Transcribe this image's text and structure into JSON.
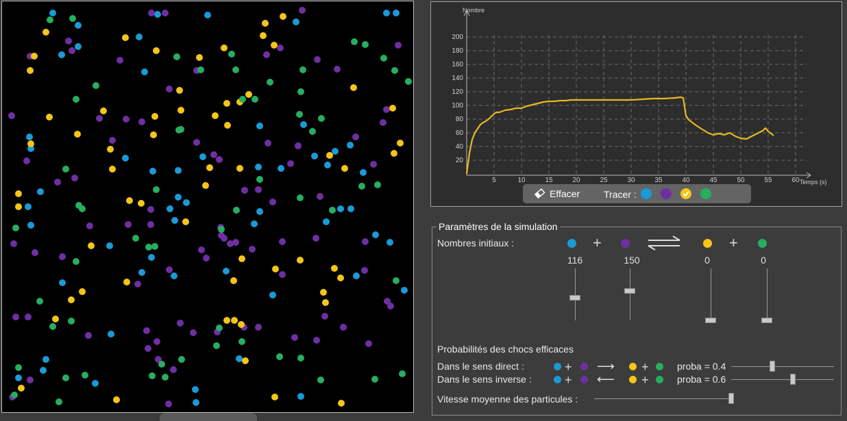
{
  "colors": {
    "blue": "#1a9ad6",
    "purple": "#6f2fa3",
    "yellow": "#f5c518",
    "green": "#27ae60",
    "curve": "#e8b923"
  },
  "chart_data": {
    "type": "line",
    "xlabel": "Temps (s)",
    "ylabel": "Nombre",
    "xlim": [
      0,
      62
    ],
    "ylim": [
      0,
      210
    ],
    "xticks": [
      5,
      10,
      15,
      20,
      25,
      30,
      35,
      40,
      45,
      50,
      55,
      60
    ],
    "yticks": [
      20,
      40,
      60,
      80,
      100,
      120,
      140,
      160,
      180,
      200
    ],
    "grid": true,
    "series": [
      {
        "color": "yellow",
        "x": [
          0,
          0.5,
          1,
          1.5,
          2,
          2.5,
          3,
          3.5,
          4,
          4.5,
          5,
          5.5,
          6,
          7,
          8,
          9,
          10,
          11,
          12,
          13,
          14,
          15,
          16,
          17,
          18,
          19,
          20,
          22,
          24,
          26,
          28,
          30,
          32,
          34,
          36,
          38,
          39,
          39.5,
          40,
          40.5,
          41,
          42,
          43,
          44,
          45,
          46,
          47,
          48,
          49,
          50,
          51,
          52,
          53,
          54,
          54.5,
          55,
          56
        ],
        "y": [
          0,
          30,
          50,
          60,
          66,
          72,
          75,
          77,
          80,
          84,
          88,
          90,
          90,
          93,
          94,
          96,
          96,
          99,
          101,
          103,
          105,
          106,
          106,
          107,
          107,
          108,
          108,
          108,
          108,
          108,
          108,
          108,
          109,
          110,
          110,
          111,
          112,
          111,
          85,
          79,
          76,
          70,
          65,
          60,
          57,
          59,
          57,
          60,
          55,
          52,
          51,
          55,
          59,
          63,
          67,
          62,
          56
        ]
      }
    ]
  },
  "graph": {
    "clear_label": "Effacer",
    "tracer_label": "Tracer :",
    "tracer_dots": [
      "blue",
      "purple",
      "yellow",
      "green"
    ]
  },
  "params": {
    "title": "Paramètres de la simulation",
    "initial_label": "Nombres initiaux :",
    "initial_counts": {
      "blue": "116",
      "purple": "150",
      "yellow": "0",
      "green": "0"
    },
    "initial_levels": {
      "blue": 116,
      "purple": 150,
      "yellow": 0,
      "green": 0
    },
    "initial_max": 250,
    "prob_title": "Probabilités des chocs efficaces",
    "direct_label": "Dans le sens direct :",
    "inverse_label": "Dans le sens inverse :",
    "direct_proba": "proba = 0.4",
    "inverse_proba": "proba = 0.6",
    "direct_value": 0.4,
    "inverse_value": 0.6,
    "speed_label": "Vitesse moyenne des particules :",
    "speed_value": 1.0
  },
  "particles": {
    "blue": [
      [
        74,
        17
      ],
      [
        111,
        35
      ],
      [
        111,
        66
      ],
      [
        87,
        78
      ],
      [
        200,
        52
      ],
      [
        227,
        19
      ],
      [
        300,
        20
      ],
      [
        429,
        30
      ],
      [
        561,
        17
      ],
      [
        575,
        17
      ],
      [
        208,
        103
      ],
      [
        376,
        182
      ],
      [
        440,
        180
      ],
      [
        40,
        198
      ],
      [
        42,
        215
      ],
      [
        180,
        229
      ],
      [
        220,
        248
      ],
      [
        257,
        247
      ],
      [
        269,
        294
      ],
      [
        257,
        286
      ],
      [
        252,
        320
      ],
      [
        293,
        227
      ],
      [
        374,
        242
      ],
      [
        407,
        244
      ],
      [
        456,
        226
      ],
      [
        486,
        219
      ],
      [
        475,
        239
      ],
      [
        508,
        210
      ],
      [
        527,
        250
      ],
      [
        494,
        303
      ],
      [
        509,
        303
      ],
      [
        473,
        322
      ],
      [
        545,
        341
      ],
      [
        566,
        352
      ],
      [
        38,
        300
      ],
      [
        42,
        327
      ],
      [
        88,
        411
      ],
      [
        159,
        486
      ],
      [
        251,
        401
      ],
      [
        376,
        307
      ],
      [
        368,
        325
      ],
      [
        327,
        394
      ],
      [
        395,
        429
      ],
      [
        517,
        401
      ],
      [
        587,
        422
      ],
      [
        64,
        523
      ],
      [
        24,
        550
      ],
      [
        136,
        558
      ],
      [
        282,
        567
      ],
      [
        346,
        522
      ],
      [
        436,
        577
      ],
      [
        283,
        586
      ],
      [
        204,
        396
      ],
      [
        218,
        374
      ],
      [
        245,
        303
      ],
      [
        56,
        278
      ],
      [
        157,
        357
      ],
      [
        60,
        539
      ]
    ],
    "purple": [
      [
        41,
        80
      ],
      [
        97,
        58
      ],
      [
        102,
        72
      ],
      [
        172,
        86
      ],
      [
        218,
        17
      ],
      [
        238,
        17
      ],
      [
        181,
        172
      ],
      [
        204,
        176
      ],
      [
        284,
        101
      ],
      [
        244,
        128
      ],
      [
        284,
        206
      ],
      [
        309,
        224
      ],
      [
        354,
        276
      ],
      [
        386,
        78
      ],
      [
        406,
        68
      ],
      [
        438,
        13
      ],
      [
        460,
        85
      ],
      [
        489,
        99
      ],
      [
        516,
        198
      ],
      [
        542,
        238
      ],
      [
        561,
        158
      ],
      [
        556,
        177
      ],
      [
        578,
        64
      ],
      [
        14,
        167
      ],
      [
        36,
        233
      ],
      [
        81,
        264
      ],
      [
        106,
        258
      ],
      [
        161,
        203
      ],
      [
        317,
        231
      ],
      [
        388,
        207
      ],
      [
        432,
        211
      ],
      [
        421,
        237
      ],
      [
        464,
        285
      ],
      [
        395,
        293
      ],
      [
        333,
        354
      ],
      [
        320,
        342
      ],
      [
        324,
        346
      ],
      [
        298,
        375
      ],
      [
        374,
        275
      ],
      [
        409,
        351
      ],
      [
        458,
        346
      ],
      [
        530,
        351
      ],
      [
        529,
        393
      ],
      [
        17,
        354
      ],
      [
        48,
        367
      ],
      [
        88,
        373
      ],
      [
        128,
        328
      ],
      [
        184,
        326
      ],
      [
        217,
        326
      ],
      [
        217,
        304
      ],
      [
        291,
        363
      ],
      [
        260,
        470
      ],
      [
        279,
        484
      ],
      [
        211,
        481
      ],
      [
        226,
        497
      ],
      [
        213,
        507
      ],
      [
        314,
        483
      ],
      [
        353,
        476
      ],
      [
        374,
        476
      ],
      [
        409,
        399
      ],
      [
        471,
        460
      ],
      [
        459,
        495
      ],
      [
        427,
        491
      ],
      [
        498,
        476
      ],
      [
        562,
        438
      ],
      [
        567,
        445
      ],
      [
        535,
        500
      ],
      [
        20,
        461
      ],
      [
        38,
        461
      ],
      [
        126,
        488
      ],
      [
        198,
        413
      ],
      [
        228,
        523
      ],
      [
        250,
        538
      ],
      [
        243,
        588
      ],
      [
        41,
        553
      ],
      [
        15,
        578
      ],
      [
        365,
        362
      ],
      [
        244,
        392
      ],
      [
        319,
        330
      ],
      [
        341,
        352
      ],
      [
        142,
        171
      ]
    ],
    "yellow": [
      [
        64,
        45
      ],
      [
        47,
        80
      ],
      [
        41,
        101
      ],
      [
        180,
        53
      ],
      [
        225,
        72
      ],
      [
        288,
        82
      ],
      [
        259,
        130
      ],
      [
        223,
        168
      ],
      [
        261,
        159
      ],
      [
        221,
        195
      ],
      [
        324,
        68
      ],
      [
        360,
        136
      ],
      [
        347,
        147
      ],
      [
        328,
        149
      ],
      [
        311,
        167
      ],
      [
        329,
        181
      ],
      [
        384,
        32
      ],
      [
        381,
        50
      ],
      [
        410,
        22
      ],
      [
        397,
        64
      ],
      [
        513,
        126
      ],
      [
        570,
        156
      ],
      [
        581,
        207
      ],
      [
        572,
        222
      ],
      [
        478,
        225
      ],
      [
        500,
        244
      ],
      [
        42,
        208
      ],
      [
        69,
        169
      ],
      [
        110,
        194
      ],
      [
        158,
        216
      ],
      [
        161,
        245
      ],
      [
        148,
        160
      ],
      [
        24,
        281
      ],
      [
        24,
        300
      ],
      [
        297,
        269
      ],
      [
        303,
        243
      ],
      [
        347,
        244
      ],
      [
        186,
        291
      ],
      [
        203,
        295
      ],
      [
        268,
        322
      ],
      [
        130,
        357
      ],
      [
        182,
        410
      ],
      [
        338,
        408
      ],
      [
        350,
        376
      ],
      [
        399,
        391
      ],
      [
        435,
        378
      ],
      [
        485,
        390
      ],
      [
        494,
        404
      ],
      [
        469,
        425
      ],
      [
        472,
        440
      ],
      [
        117,
        424
      ],
      [
        101,
        436
      ],
      [
        78,
        464
      ],
      [
        328,
        466
      ],
      [
        339,
        466
      ],
      [
        349,
        472
      ],
      [
        355,
        525
      ],
      [
        28,
        565
      ],
      [
        167,
        582
      ],
      [
        398,
        578
      ],
      [
        495,
        587
      ]
    ],
    "green": [
      [
        70,
        27
      ],
      [
        103,
        25
      ],
      [
        137,
        123
      ],
      [
        108,
        143
      ],
      [
        255,
        81
      ],
      [
        290,
        100
      ],
      [
        261,
        187
      ],
      [
        258,
        188
      ],
      [
        335,
        77
      ],
      [
        341,
        100
      ],
      [
        369,
        143
      ],
      [
        351,
        143
      ],
      [
        391,
        118
      ],
      [
        436,
        132
      ],
      [
        434,
        165
      ],
      [
        466,
        171
      ],
      [
        453,
        190
      ],
      [
        439,
        100
      ],
      [
        514,
        59
      ],
      [
        530,
        63
      ],
      [
        557,
        83
      ],
      [
        573,
        101
      ],
      [
        593,
        117
      ],
      [
        93,
        245
      ],
      [
        112,
        298
      ],
      [
        225,
        275
      ],
      [
        223,
        358
      ],
      [
        195,
        346
      ],
      [
        117,
        303
      ],
      [
        214,
        359
      ],
      [
        320,
        333
      ],
      [
        342,
        305
      ],
      [
        376,
        260
      ],
      [
        435,
        287
      ],
      [
        482,
        305
      ],
      [
        525,
        270
      ],
      [
        548,
        268
      ],
      [
        20,
        331
      ],
      [
        108,
        380
      ],
      [
        55,
        438
      ],
      [
        101,
        467
      ],
      [
        74,
        475
      ],
      [
        317,
        477
      ],
      [
        350,
        497
      ],
      [
        262,
        523
      ],
      [
        313,
        503
      ],
      [
        233,
        530
      ],
      [
        238,
        549
      ],
      [
        219,
        547
      ],
      [
        93,
        550
      ],
      [
        121,
        546
      ],
      [
        24,
        535
      ],
      [
        405,
        519
      ],
      [
        465,
        553
      ],
      [
        544,
        552
      ],
      [
        584,
        544
      ],
      [
        575,
        408
      ],
      [
        18,
        575
      ],
      [
        83,
        585
      ],
      [
        436,
        521
      ]
    ]
  }
}
